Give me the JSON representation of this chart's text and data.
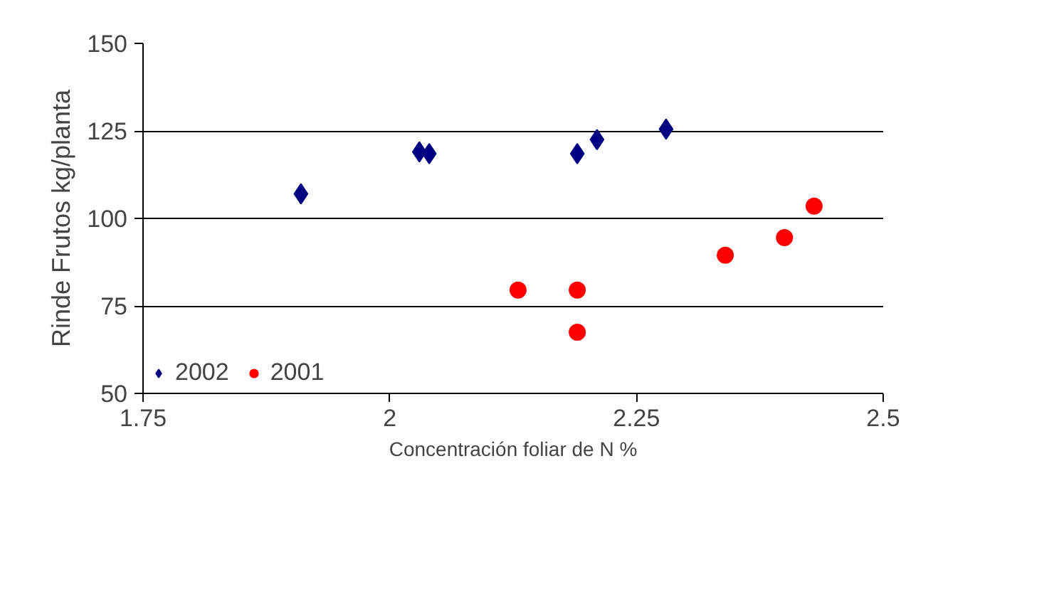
{
  "chart_data": {
    "type": "scatter",
    "xlabel": "Concentración foliar de N %",
    "ylabel": "Rinde Frutos kg/planta",
    "xlim": [
      1.75,
      2.5
    ],
    "xticks": [
      1.75,
      2,
      2.25,
      2.5
    ],
    "ylim": [
      50,
      150
    ],
    "yticks": [
      50,
      75,
      100,
      125,
      150
    ],
    "grid": "y",
    "legend": "bottom left",
    "series": [
      {
        "name": "2002",
        "color": "#000080",
        "marker": "diamond",
        "x": [
          1.91,
          2.03,
          2.04,
          2.19,
          2.21,
          2.28
        ],
        "values": [
          107,
          119,
          118.5,
          118.5,
          122.5,
          125.5
        ]
      },
      {
        "name": "2001",
        "color": "#ff0000",
        "marker": "circle",
        "x": [
          2.13,
          2.19,
          2.19,
          2.34,
          2.4,
          2.43
        ],
        "values": [
          79.5,
          79.5,
          67.5,
          89.5,
          94.5,
          103.5
        ]
      }
    ]
  }
}
